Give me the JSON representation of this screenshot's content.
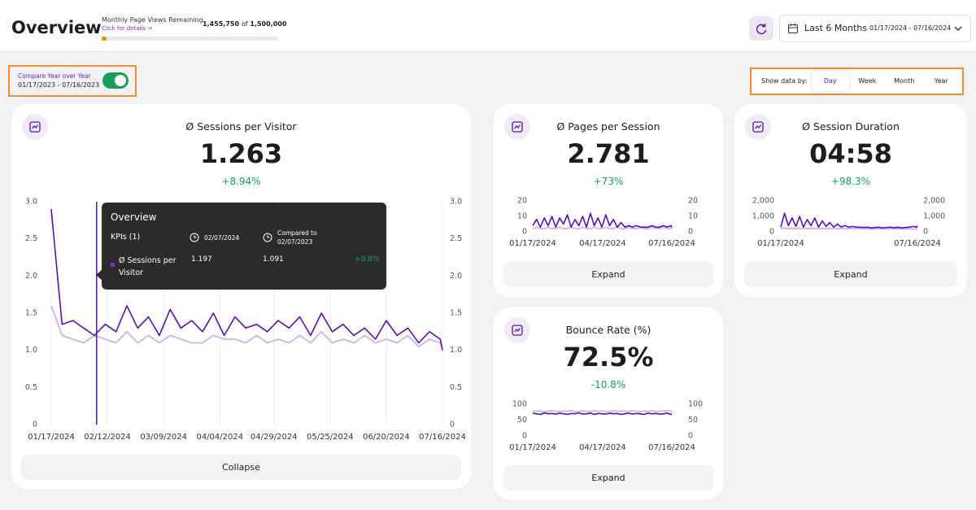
{
  "header": {
    "title": "Overview",
    "page_views": {
      "label": "Monthly Page Views Remaining",
      "link": "Click for details →",
      "remaining": {
        "value": 1455750,
        "label": "1,455,750"
      },
      "of": "of",
      "total": {
        "value": 1500000,
        "label": "1,500,000"
      }
    },
    "range": {
      "label": "Last 6 Months",
      "dates": "01/17/2024 - 07/16/2024"
    }
  },
  "compare": {
    "label": "Compare Year over Year",
    "dates": "01/17/2023 - 07/16/2023",
    "enabled": true
  },
  "granularity": {
    "label": "Show data by:",
    "options": [
      "Day",
      "Week",
      "Month",
      "Year"
    ],
    "selected": 0
  },
  "tooltip": {
    "title": "Overview",
    "kpis": "KPIs",
    "count": "(1)",
    "date": "02/07/2024",
    "compared_label": "Compared to",
    "compared_date": "02/07/2023",
    "metric": "Ø Sessions per Visitor",
    "value": "1.197",
    "compared_value": "1.091",
    "change": "+9.8%"
  },
  "chart_data": [
    {
      "type": "line",
      "title": "Ø Sessions per Visitor",
      "kpi": "1.263",
      "change": "+8.94%",
      "button": "Collapse",
      "grid": true,
      "x": [
        "01/17/2024",
        "01/22/2024",
        "01/27/2024",
        "02/01/2024",
        "02/06/2024",
        "02/11/2024",
        "02/16/2024",
        "02/21/2024",
        "02/26/2024",
        "03/02/2024",
        "03/07/2024",
        "03/12/2024",
        "03/17/2024",
        "03/22/2024",
        "03/27/2024",
        "04/01/2024",
        "04/06/2024",
        "04/11/2024",
        "04/16/2024",
        "04/21/2024",
        "04/26/2024",
        "05/01/2024",
        "05/06/2024",
        "05/11/2024",
        "05/16/2024",
        "05/21/2024",
        "05/26/2024",
        "05/31/2024",
        "06/05/2024",
        "06/10/2024",
        "06/15/2024",
        "06/20/2024",
        "06/25/2024",
        "06/30/2024",
        "07/05/2024",
        "07/10/2024",
        "07/15/2024",
        "07/16/2024"
      ],
      "xlim": [
        "01/17/2024",
        "07/16/2024"
      ],
      "xticks": [
        "01/17/2024",
        "02/12/2024",
        "03/09/2024",
        "04/04/2024",
        "04/29/2024",
        "05/25/2024",
        "06/20/2024",
        "07/16/2024"
      ],
      "ylim": [
        0,
        3
      ],
      "yticks": [
        0,
        0.5,
        {
          "value": 1,
          "label": "1.0"
        },
        1.5,
        {
          "value": 2,
          "label": "2.0"
        },
        2.5,
        {
          "value": 3,
          "label": "3.0"
        }
      ],
      "y2lim": [
        0,
        3
      ],
      "y2ticks": [
        0,
        0.5,
        {
          "value": 1,
          "label": "1.0"
        },
        1.5,
        {
          "value": 2,
          "label": "2.0"
        },
        2.5,
        {
          "value": 3,
          "label": "3.0"
        }
      ],
      "series": [
        {
          "color": "#cdb3ea",
          "axis": "y2",
          "values": [
            1.6,
            1.2,
            1.15,
            1.1,
            1.2,
            1.15,
            1.1,
            1.25,
            1.1,
            1.2,
            1.1,
            1.2,
            1.15,
            1.1,
            1.1,
            1.2,
            1.15,
            1.15,
            1.1,
            1.2,
            1.1,
            1.15,
            1.1,
            1.2,
            1.1,
            1.25,
            1.1,
            1.15,
            1.1,
            1.2,
            1.1,
            1.15,
            1.1,
            1.2,
            1.05,
            1.15,
            1.1,
            1.05
          ]
        },
        {
          "color": "#5a0fb0",
          "values": [
            2.9,
            1.35,
            1.4,
            1.3,
            1.2,
            1.35,
            1.25,
            1.6,
            1.3,
            1.45,
            1.2,
            1.55,
            1.3,
            1.4,
            1.25,
            1.5,
            1.2,
            1.45,
            1.3,
            1.35,
            1.25,
            1.4,
            1.3,
            1.45,
            1.2,
            1.5,
            1.25,
            1.35,
            1.2,
            1.3,
            1.15,
            1.4,
            1.2,
            1.3,
            1.1,
            1.25,
            1.15,
            1.0
          ]
        }
      ]
    },
    {
      "type": "line",
      "title": "Ø Pages per Session",
      "kpi": "2.781",
      "change": "+73%",
      "button": "Expand",
      "grid": false,
      "x": [
        "01/17/2024",
        "01/22/2024",
        "01/27/2024",
        "02/01/2024",
        "02/06/2024",
        "02/11/2024",
        "02/16/2024",
        "02/21/2024",
        "02/26/2024",
        "03/02/2024",
        "03/07/2024",
        "03/12/2024",
        "03/17/2024",
        "03/22/2024",
        "03/27/2024",
        "04/01/2024",
        "04/06/2024",
        "04/11/2024",
        "04/16/2024",
        "04/21/2024",
        "04/26/2024",
        "05/01/2024",
        "05/06/2024",
        "05/11/2024",
        "05/16/2024",
        "05/21/2024",
        "05/26/2024",
        "05/31/2024",
        "06/05/2024",
        "06/10/2024",
        "06/15/2024",
        "06/20/2024",
        "06/25/2024",
        "06/30/2024",
        "07/05/2024",
        "07/10/2024",
        "07/15/2024",
        "07/16/2024"
      ],
      "xlim": [
        "01/17/2024",
        "07/16/2024"
      ],
      "xticks": [
        "01/17/2024",
        "04/17/2024",
        "07/16/2024"
      ],
      "ylim": [
        0,
        20
      ],
      "yticks": [
        0,
        10,
        20
      ],
      "y2lim": [
        0,
        20
      ],
      "y2ticks": [
        0,
        10,
        20
      ],
      "series": [
        {
          "color": "#cdb3ea",
          "axis": "y2",
          "values": [
            2,
            3,
            2,
            2,
            3,
            2,
            2,
            3,
            2,
            2,
            3,
            2,
            2,
            3,
            2,
            2,
            3,
            2,
            2,
            3,
            2,
            2,
            3,
            2,
            2,
            3,
            2,
            2,
            3,
            2,
            2,
            3,
            2,
            2,
            3,
            2,
            2,
            3
          ]
        },
        {
          "color": "#5a0fb0",
          "values": [
            4,
            8,
            3,
            9,
            4,
            10,
            3,
            9,
            5,
            11,
            3,
            8,
            4,
            10,
            3,
            12,
            4,
            9,
            3,
            11,
            4,
            8,
            3,
            6,
            3,
            4,
            3,
            4,
            3,
            3,
            3,
            4,
            3,
            3,
            4,
            3,
            4,
            3
          ]
        }
      ]
    },
    {
      "type": "line",
      "title": "Ø Session Duration",
      "kpi": "04:58",
      "change": "+98.3%",
      "button": "Expand",
      "grid": false,
      "x": [
        "01/17/2024",
        "01/22/2024",
        "01/27/2024",
        "02/01/2024",
        "02/06/2024",
        "02/11/2024",
        "02/16/2024",
        "02/21/2024",
        "02/26/2024",
        "03/02/2024",
        "03/07/2024",
        "03/12/2024",
        "03/17/2024",
        "03/22/2024",
        "03/27/2024",
        "04/01/2024",
        "04/06/2024",
        "04/11/2024",
        "04/16/2024",
        "04/21/2024",
        "04/26/2024",
        "05/01/2024",
        "05/06/2024",
        "05/11/2024",
        "05/16/2024",
        "05/21/2024",
        "05/26/2024",
        "05/31/2024",
        "06/05/2024",
        "06/10/2024",
        "06/15/2024",
        "06/20/2024",
        "06/25/2024",
        "06/30/2024",
        "07/05/2024",
        "07/10/2024",
        "07/15/2024",
        "07/16/2024"
      ],
      "xlim": [
        "01/17/2024",
        "07/16/2024"
      ],
      "xticks": [
        "01/17/2024",
        "07/16/2024"
      ],
      "ylim": [
        0,
        2000
      ],
      "yticks": [
        0,
        {
          "value": 1000,
          "label": "1,000"
        },
        {
          "value": 2000,
          "label": "2,000"
        }
      ],
      "y2lim": [
        0,
        2000
      ],
      "y2ticks": [
        0,
        {
          "value": 1000,
          "label": "1,000"
        },
        {
          "value": 2000,
          "label": "2,000"
        }
      ],
      "series": [
        {
          "color": "#cdb3ea",
          "axis": "y2",
          "values": [
            200,
            250,
            200,
            220,
            200,
            240,
            200,
            220,
            200,
            230,
            200,
            220,
            200,
            210,
            200,
            220,
            200,
            210,
            190,
            200,
            200,
            210,
            190,
            200,
            190,
            200,
            190,
            200,
            190,
            200,
            190,
            200,
            190,
            200,
            190,
            200,
            190,
            200
          ]
        },
        {
          "color": "#5a0fb0",
          "values": [
            300,
            1200,
            400,
            900,
            350,
            1000,
            300,
            800,
            400,
            900,
            300,
            700,
            350,
            600,
            300,
            500,
            300,
            400,
            300,
            350,
            300,
            300,
            280,
            300,
            250,
            280,
            300,
            250,
            280,
            300,
            260,
            300,
            250,
            280,
            300,
            350,
            300,
            400
          ]
        }
      ]
    },
    {
      "type": "line",
      "title": "Bounce Rate (%)",
      "kpi": "72.5%",
      "change": "-10.8%",
      "button": "Expand",
      "grid": false,
      "x": [
        "01/17/2024",
        "01/22/2024",
        "01/27/2024",
        "02/01/2024",
        "02/06/2024",
        "02/11/2024",
        "02/16/2024",
        "02/21/2024",
        "02/26/2024",
        "03/02/2024",
        "03/07/2024",
        "03/12/2024",
        "03/17/2024",
        "03/22/2024",
        "03/27/2024",
        "04/01/2024",
        "04/06/2024",
        "04/11/2024",
        "04/16/2024",
        "04/21/2024",
        "04/26/2024",
        "05/01/2024",
        "05/06/2024",
        "05/11/2024",
        "05/16/2024",
        "05/21/2024",
        "05/26/2024",
        "05/31/2024",
        "06/05/2024",
        "06/10/2024",
        "06/15/2024",
        "06/20/2024",
        "06/25/2024",
        "06/30/2024",
        "07/05/2024",
        "07/10/2024",
        "07/15/2024",
        "07/16/2024"
      ],
      "xlim": [
        "01/17/2024",
        "07/16/2024"
      ],
      "xticks": [
        "01/17/2024",
        "04/17/2024",
        "07/16/2024"
      ],
      "ylim": [
        0,
        100
      ],
      "yticks": [
        0,
        50,
        100
      ],
      "y2lim": [
        0,
        100
      ],
      "y2ticks": [
        0,
        50,
        100
      ],
      "series": [
        {
          "color": "#cdb3ea",
          "axis": "y2",
          "values": [
            80,
            78,
            79,
            77,
            78,
            80,
            78,
            77,
            79,
            78,
            80,
            77,
            78,
            79,
            78,
            77,
            80,
            78,
            79,
            77,
            78,
            80,
            78,
            79,
            77,
            78,
            80,
            78,
            77,
            79,
            78,
            80,
            77,
            78,
            79,
            80,
            78,
            79
          ]
        },
        {
          "color": "#5a0fb0",
          "values": [
            72,
            70,
            68,
            73,
            70,
            71,
            69,
            72,
            70,
            68,
            71,
            70,
            73,
            69,
            70,
            72,
            68,
            71,
            70,
            69,
            72,
            70,
            71,
            68,
            70,
            72,
            69,
            71,
            70,
            68,
            72,
            70,
            71,
            69,
            70,
            72,
            68,
            70
          ]
        }
      ]
    }
  ]
}
